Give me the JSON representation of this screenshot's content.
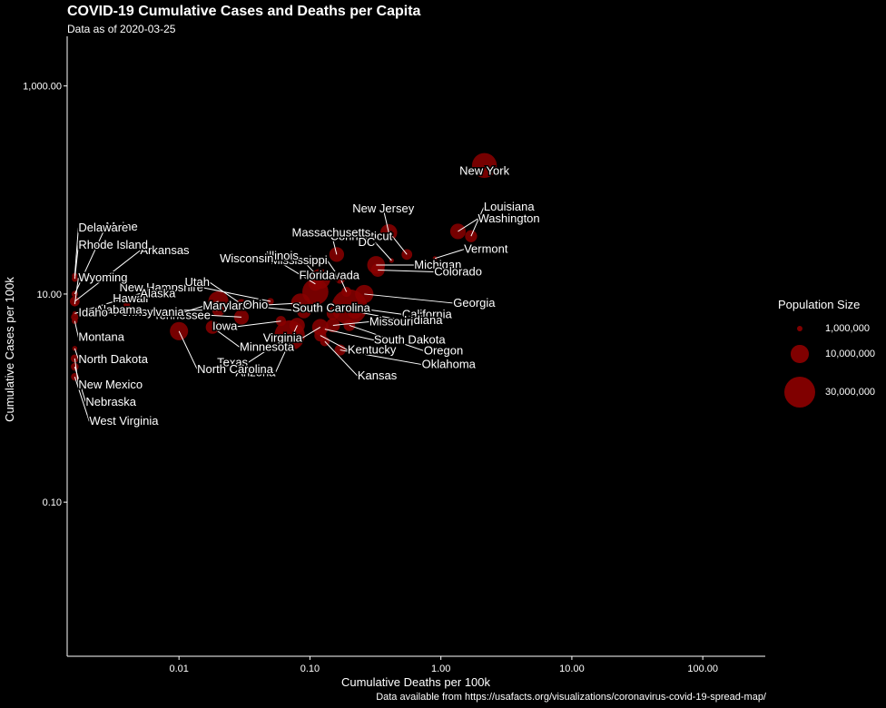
{
  "chart_data": {
    "type": "scatter",
    "title": "COVID-19 Cumulative Cases and Deaths per Capita",
    "subtitle": "Data as of 2020-03-25",
    "xlabel": "Cumulative Deaths per 100k",
    "ylabel": "Cumulative Cases per 100k",
    "caption": "Data available from https://usafacts.org/visualizations/coronavirus-covid-19-spread-map/",
    "x_scale": "log10",
    "y_scale": "log10",
    "xlim": [
      0.0014,
      300
    ],
    "ylim": [
      0.0033,
      3000
    ],
    "x_ticks": [
      0.01,
      0.1,
      1,
      10,
      100
    ],
    "x_tick_labels": [
      "0.01",
      "0.10",
      "1.00",
      "10.00",
      "100.00"
    ],
    "y_ticks": [
      0.1,
      10,
      1000
    ],
    "y_tick_labels": [
      "0.10",
      "10.00",
      "1,000.00"
    ],
    "grid": false,
    "legend": {
      "title": "Population Size",
      "position": "right",
      "entries": [
        {
          "label": "1,000,000",
          "population": 1000000
        },
        {
          "label": "10,000,000",
          "population": 10000000
        },
        {
          "label": "30,000,000",
          "population": 30000000
        }
      ]
    },
    "point_color": "#8b0000",
    "points": [
      {
        "state": "New York",
        "x": 2.15,
        "y": 172,
        "pop": 19.5
      },
      {
        "state": "Louisiana",
        "x": 1.7,
        "y": 36,
        "pop": 4.6
      },
      {
        "state": "Washington",
        "x": 1.35,
        "y": 40,
        "pop": 7.6
      },
      {
        "state": "New Jersey",
        "x": 0.4,
        "y": 39,
        "pop": 8.9
      },
      {
        "state": "Vermont",
        "x": 0.9,
        "y": 22,
        "pop": 0.6
      },
      {
        "state": "Connecticut",
        "x": 0.55,
        "y": 24,
        "pop": 3.6
      },
      {
        "state": "DC",
        "x": 0.42,
        "y": 21,
        "pop": 0.7
      },
      {
        "state": "Massachusetts",
        "x": 0.16,
        "y": 24,
        "pop": 6.9
      },
      {
        "state": "Michigan",
        "x": 0.32,
        "y": 19,
        "pop": 10.0
      },
      {
        "state": "Colorado",
        "x": 0.33,
        "y": 17,
        "pop": 5.8
      },
      {
        "state": "Georgia",
        "x": 0.26,
        "y": 10,
        "pop": 10.6
      },
      {
        "state": "California",
        "x": 0.2,
        "y": 7.5,
        "pop": 39.5
      },
      {
        "state": "Indiana",
        "x": 0.22,
        "y": 6.8,
        "pop": 6.7
      },
      {
        "state": "Oregon",
        "x": 0.2,
        "y": 5.0,
        "pop": 4.2
      },
      {
        "state": "Oklahoma",
        "x": 0.17,
        "y": 2.9,
        "pop": 3.9
      },
      {
        "state": "South Dakota",
        "x": 0.13,
        "y": 4.6,
        "pop": 0.9
      },
      {
        "state": "Kansas",
        "x": 0.13,
        "y": 3.5,
        "pop": 2.9
      },
      {
        "state": "Kentucky",
        "x": 0.12,
        "y": 4.0,
        "pop": 4.5
      },
      {
        "state": "Missouri",
        "x": 0.15,
        "y": 5.0,
        "pop": 6.1
      },
      {
        "state": "South Carolina",
        "x": 0.15,
        "y": 6.5,
        "pop": 5.1
      },
      {
        "state": "Nevada",
        "x": 0.19,
        "y": 10.5,
        "pop": 3.1
      },
      {
        "state": "Mississippi",
        "x": 0.17,
        "y": 14,
        "pop": 3.0
      },
      {
        "state": "Illinois",
        "x": 0.12,
        "y": 14,
        "pop": 12.7
      },
      {
        "state": "Florida",
        "x": 0.11,
        "y": 10.5,
        "pop": 21.5
      },
      {
        "state": "Wisconsin",
        "x": 0.11,
        "y": 12.5,
        "pop": 5.8
      },
      {
        "state": "Virginia",
        "x": 0.12,
        "y": 4.8,
        "pop": 8.5
      },
      {
        "state": "Arizona",
        "x": 0.08,
        "y": 5.0,
        "pop": 7.3
      },
      {
        "state": "Texas",
        "x": 0.07,
        "y": 4.0,
        "pop": 29.0
      },
      {
        "state": "Iowa",
        "x": 0.06,
        "y": 5.5,
        "pop": 3.2
      },
      {
        "state": "Maryland",
        "x": 0.09,
        "y": 6.8,
        "pop": 6.0
      },
      {
        "state": "Ohio",
        "x": 0.085,
        "y": 8.2,
        "pop": 11.7
      },
      {
        "state": "New Hampshire",
        "x": 0.05,
        "y": 8.5,
        "pop": 1.4
      },
      {
        "state": "Utah",
        "x": 0.03,
        "y": 8.0,
        "pop": 3.2
      },
      {
        "state": "Tennessee",
        "x": 0.03,
        "y": 6.0,
        "pop": 6.8
      },
      {
        "state": "Pennsylvania",
        "x": 0.02,
        "y": 8.5,
        "pop": 12.8
      },
      {
        "state": "Alabama",
        "x": 0.02,
        "y": 7.0,
        "pop": 4.9
      },
      {
        "state": "Minnesota",
        "x": 0.018,
        "y": 4.8,
        "pop": 5.6
      },
      {
        "state": "North Carolina",
        "x": 0.01,
        "y": 4.4,
        "pop": 10.5
      },
      {
        "state": "Hawaii",
        "x": 0.004,
        "y": 8.0,
        "pop": 1.4
      },
      {
        "state": "Maine",
        "x": 0.0016,
        "y": 10,
        "pop": 1.3
      },
      {
        "state": "Delaware",
        "x": 0.0016,
        "y": 15,
        "pop": 1.0
      },
      {
        "state": "Arkansas",
        "x": 0.0016,
        "y": 8.5,
        "pop": 3.0
      },
      {
        "state": "Rhode Island",
        "x": 0.0016,
        "y": 14,
        "pop": 1.1
      },
      {
        "state": "Alaska",
        "x": 0.0016,
        "y": 6.5,
        "pop": 0.7
      },
      {
        "state": "Wyoming",
        "x": 0.0016,
        "y": 8.0,
        "pop": 0.6
      },
      {
        "state": "Idaho",
        "x": 0.0016,
        "y": 6.0,
        "pop": 1.8
      },
      {
        "state": "Montana",
        "x": 0.0016,
        "y": 5.5,
        "pop": 1.1
      },
      {
        "state": "North Dakota",
        "x": 0.0016,
        "y": 3.0,
        "pop": 0.8
      },
      {
        "state": "New Mexico",
        "x": 0.0016,
        "y": 2.4,
        "pop": 2.1
      },
      {
        "state": "Nebraska",
        "x": 0.0016,
        "y": 2.0,
        "pop": 1.9
      },
      {
        "state": "West Virginia",
        "x": 0.0016,
        "y": 1.6,
        "pop": 1.8
      }
    ],
    "labels": [
      {
        "text": "New York",
        "state": "New York"
      },
      {
        "text": "Louisiana",
        "state": "Louisiana"
      },
      {
        "text": "Washington",
        "state": "Washington"
      },
      {
        "text": "New Jersey",
        "state": "New Jersey"
      },
      {
        "text": "Vermont",
        "state": "Vermont"
      },
      {
        "text": "Connecticut",
        "state": "Connecticut"
      },
      {
        "text": "DC",
        "state": "DC"
      },
      {
        "text": "Massachusetts",
        "state": "Massachusetts"
      },
      {
        "text": "Michigan",
        "state": "Michigan"
      },
      {
        "text": "Colorado",
        "state": "Colorado"
      },
      {
        "text": "Georgia",
        "state": "Georgia"
      },
      {
        "text": "California",
        "state": "California"
      },
      {
        "text": "Indiana",
        "state": "Indiana"
      },
      {
        "text": "Oregon",
        "state": "Oregon"
      },
      {
        "text": "Oklahoma",
        "state": "Oklahoma"
      },
      {
        "text": "South Dakota",
        "state": "South Dakota"
      },
      {
        "text": "Kansas",
        "state": "Kansas"
      },
      {
        "text": "Kentucky",
        "state": "Kentucky"
      },
      {
        "text": "Missouri",
        "state": "Missouri"
      },
      {
        "text": "South Carolina",
        "state": "South Carolina"
      },
      {
        "text": "Nevada",
        "state": "Nevada"
      },
      {
        "text": "Mississippi",
        "state": "Mississippi"
      },
      {
        "text": "Illinois",
        "state": "Illinois"
      },
      {
        "text": "Florida",
        "state": "Florida"
      },
      {
        "text": "Wisconsin",
        "state": "Wisconsin"
      },
      {
        "text": "Virginia",
        "state": "Virginia"
      },
      {
        "text": "Arizona",
        "state": "Arizona"
      },
      {
        "text": "Texas",
        "state": "Texas"
      },
      {
        "text": "Iowa",
        "state": "Iowa"
      },
      {
        "text": "Maryland",
        "state": "Maryland"
      },
      {
        "text": "Ohio",
        "state": "Ohio"
      },
      {
        "text": "New Hampshire",
        "state": "New Hampshire"
      },
      {
        "text": "Utah",
        "state": "Utah"
      },
      {
        "text": "Tennessee",
        "state": "Tennessee"
      },
      {
        "text": "Pennsylvania",
        "state": "Pennsylvania"
      },
      {
        "text": "Alabama",
        "state": "Alabama"
      },
      {
        "text": "Minnesota",
        "state": "Minnesota"
      },
      {
        "text": "North Carolina",
        "state": "North Carolina"
      },
      {
        "text": "Hawaii",
        "state": "Hawaii"
      },
      {
        "text": "Maine",
        "state": "Maine"
      },
      {
        "text": "Delaware",
        "state": "Delaware"
      },
      {
        "text": "Arkansas",
        "state": "Arkansas"
      },
      {
        "text": "Rhode Island",
        "state": "Rhode Island"
      },
      {
        "text": "Alaska",
        "state": "Alaska"
      },
      {
        "text": "Wyoming",
        "state": "Wyoming"
      },
      {
        "text": "Idaho",
        "state": "Idaho"
      },
      {
        "text": "Montana",
        "state": "Montana"
      },
      {
        "text": "North Dakota",
        "state": "North Dakota"
      },
      {
        "text": "New Mexico",
        "state": "New Mexico"
      },
      {
        "text": "Nebraska",
        "state": "Nebraska"
      },
      {
        "text": "West Virginia",
        "state": "West Virginia"
      }
    ]
  }
}
